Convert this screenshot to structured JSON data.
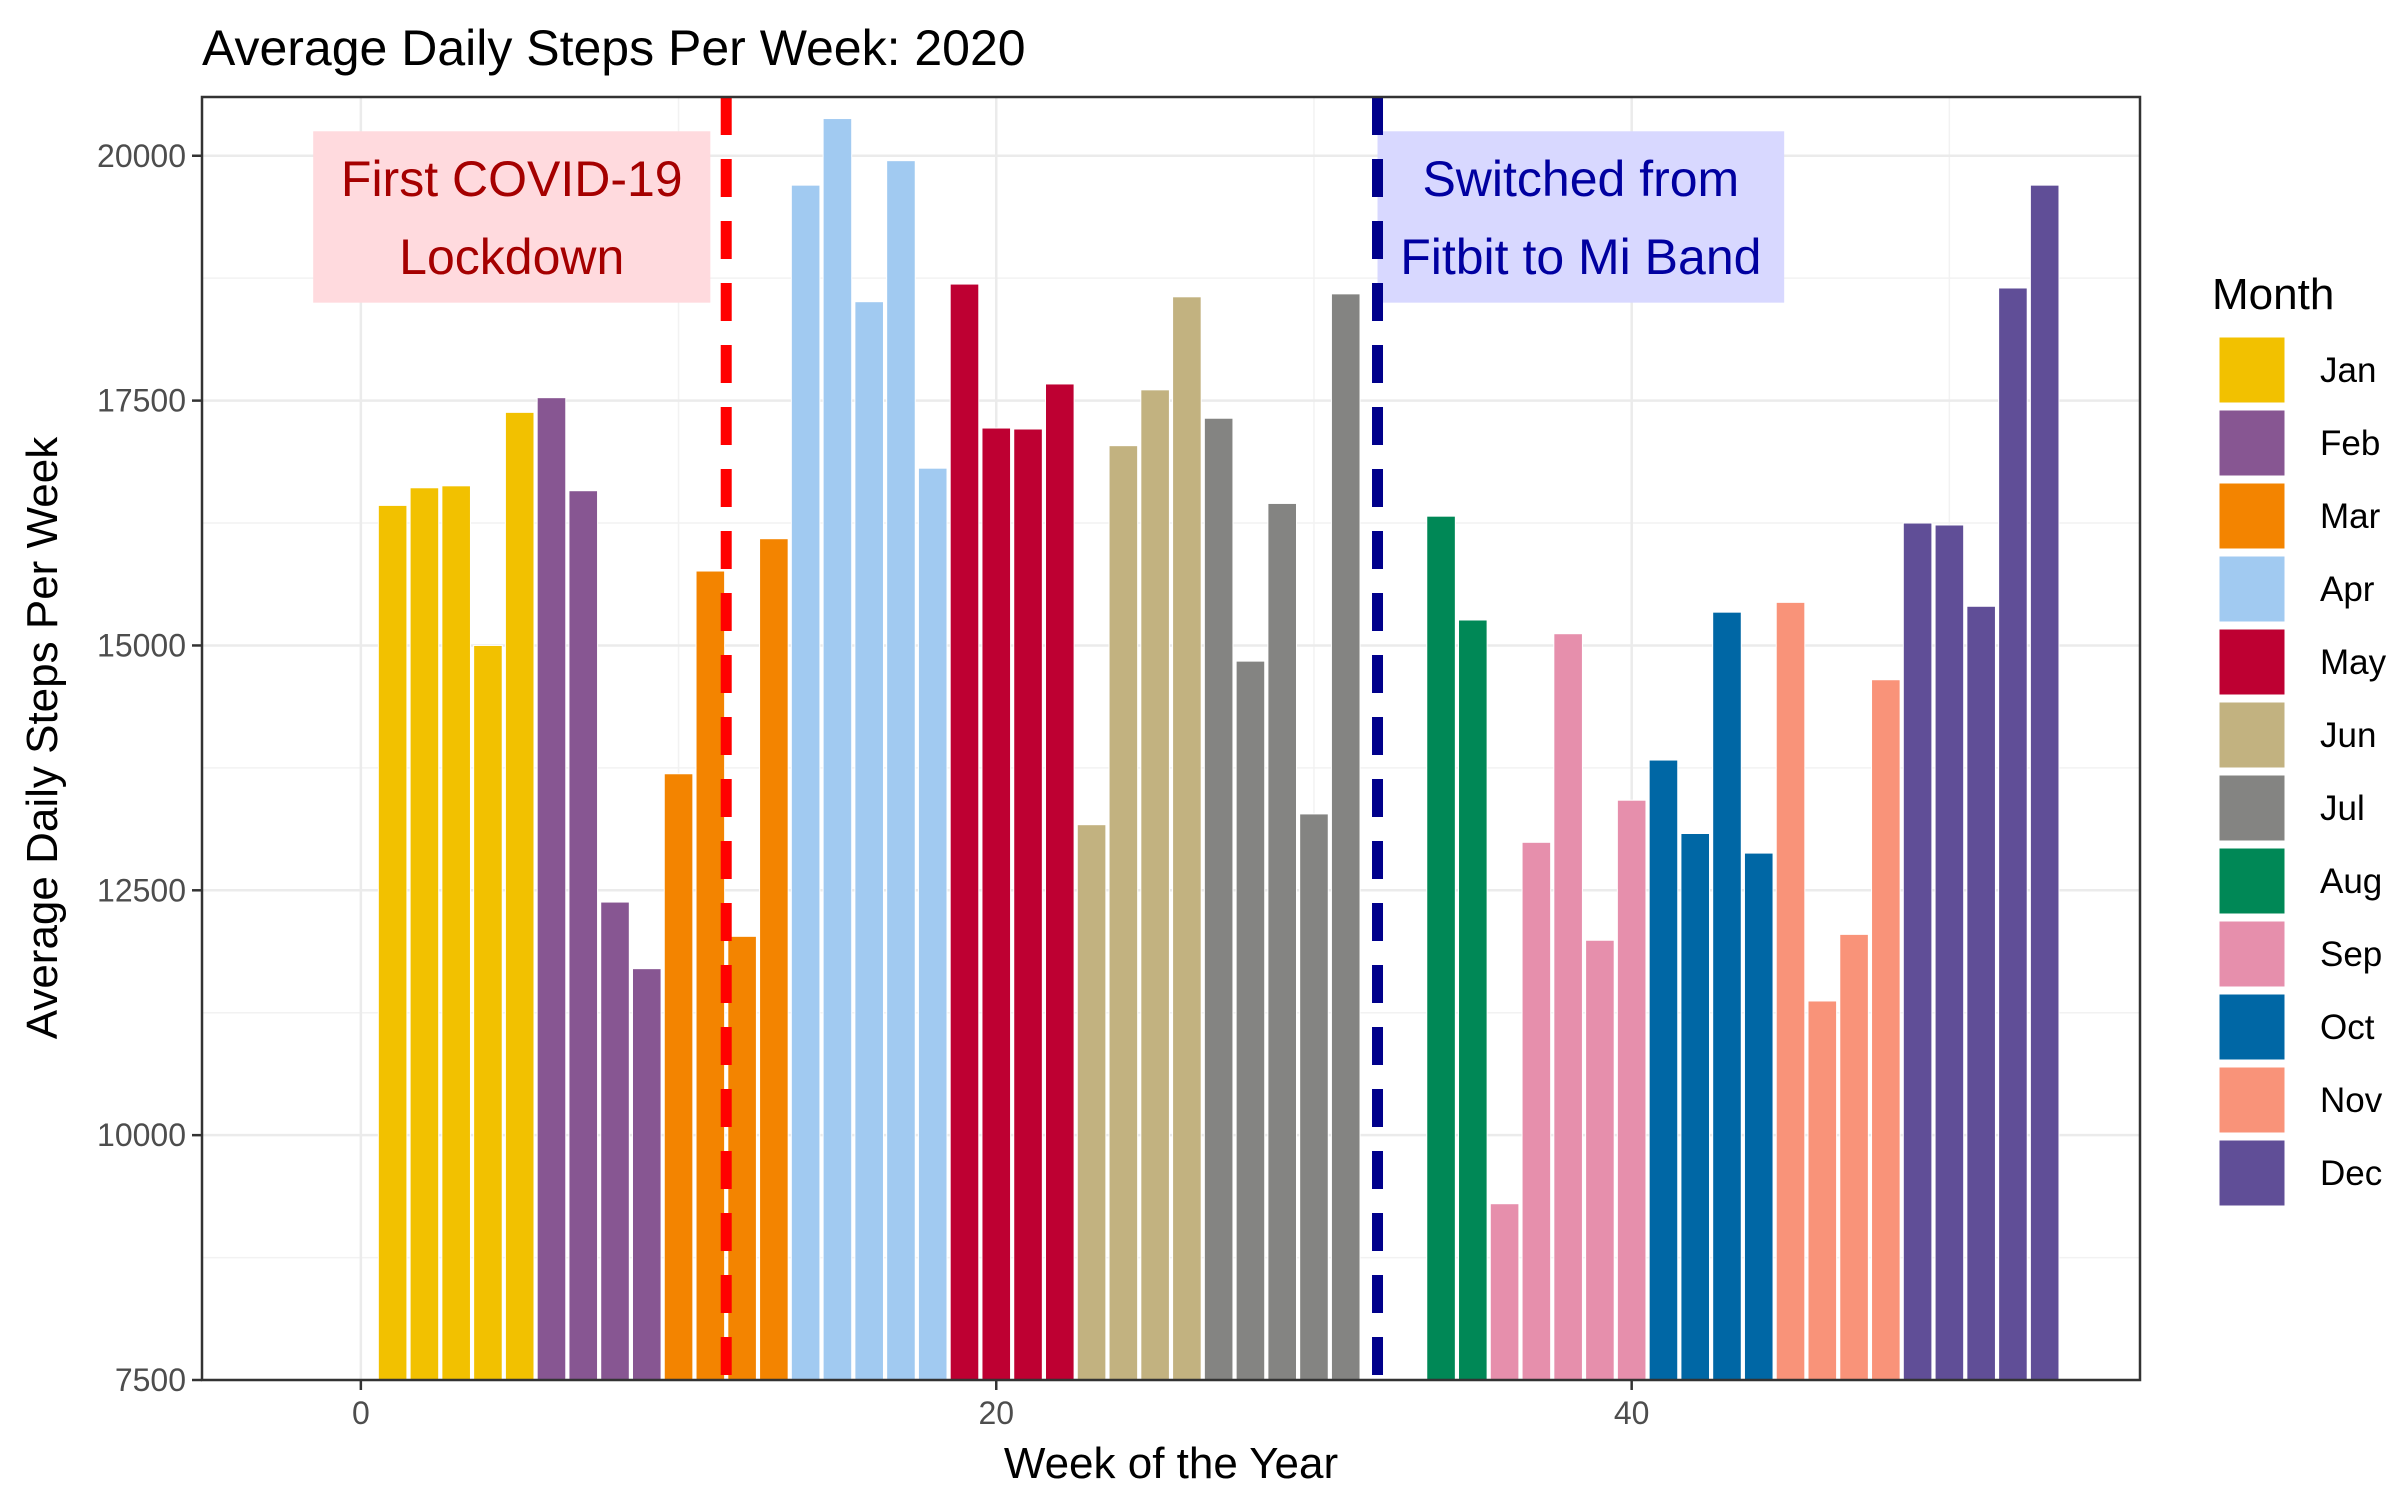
{
  "chart_data": {
    "type": "bar",
    "title": "Average Daily Steps Per Week: 2020",
    "xlabel": "Week of the Year",
    "ylabel": "Average Daily Steps Per Week",
    "xlim": [
      -5,
      56
    ],
    "ylim": [
      7500,
      20600
    ],
    "x_ticks": [
      0,
      20,
      40
    ],
    "y_ticks": [
      7500,
      10000,
      12500,
      15000,
      17500,
      20000
    ],
    "grid": true,
    "legend_title": "Month",
    "legend_position": "right",
    "months": [
      {
        "name": "Jan",
        "color": "#F2C100"
      },
      {
        "name": "Feb",
        "color": "#875692"
      },
      {
        "name": "Mar",
        "color": "#F38400"
      },
      {
        "name": "Apr",
        "color": "#A1CAF1"
      },
      {
        "name": "May",
        "color": "#BE0032"
      },
      {
        "name": "Jun",
        "color": "#C2B280"
      },
      {
        "name": "Jul",
        "color": "#848482"
      },
      {
        "name": "Aug",
        "color": "#008856"
      },
      {
        "name": "Sep",
        "color": "#E68FAC"
      },
      {
        "name": "Oct",
        "color": "#0067A5"
      },
      {
        "name": "Nov",
        "color": "#F99379"
      },
      {
        "name": "Dec",
        "color": "#604E97"
      }
    ],
    "bars": [
      {
        "week": 1,
        "month": "Jan",
        "value": 16430
      },
      {
        "week": 2,
        "month": "Jan",
        "value": 16610
      },
      {
        "week": 3,
        "month": "Jan",
        "value": 16630
      },
      {
        "week": 4,
        "month": "Jan",
        "value": 15000
      },
      {
        "week": 5,
        "month": "Jan",
        "value": 17380
      },
      {
        "week": 6,
        "month": "Feb",
        "value": 17530
      },
      {
        "week": 7,
        "month": "Feb",
        "value": 16580
      },
      {
        "week": 8,
        "month": "Feb",
        "value": 12380
      },
      {
        "week": 9,
        "month": "Feb",
        "value": 11700
      },
      {
        "week": 10,
        "month": "Mar",
        "value": 13690
      },
      {
        "week": 11,
        "month": "Mar",
        "value": 15760
      },
      {
        "week": 12,
        "month": "Mar",
        "value": 12030
      },
      {
        "week": 13,
        "month": "Mar",
        "value": 16090
      },
      {
        "week": 14,
        "month": "Apr",
        "value": 19700
      },
      {
        "week": 15,
        "month": "Apr",
        "value": 20380
      },
      {
        "week": 16,
        "month": "Apr",
        "value": 18510
      },
      {
        "week": 17,
        "month": "Apr",
        "value": 19950
      },
      {
        "week": 18,
        "month": "Apr",
        "value": 16810
      },
      {
        "week": 19,
        "month": "May",
        "value": 18690
      },
      {
        "week": 20,
        "month": "May",
        "value": 17220
      },
      {
        "week": 21,
        "month": "May",
        "value": 17210
      },
      {
        "week": 22,
        "month": "May",
        "value": 17670
      },
      {
        "week": 23,
        "month": "Jun",
        "value": 13170
      },
      {
        "week": 24,
        "month": "Jun",
        "value": 17040
      },
      {
        "week": 25,
        "month": "Jun",
        "value": 17610
      },
      {
        "week": 26,
        "month": "Jun",
        "value": 18560
      },
      {
        "week": 27,
        "month": "Jul",
        "value": 17320
      },
      {
        "week": 28,
        "month": "Jul",
        "value": 14840
      },
      {
        "week": 29,
        "month": "Jul",
        "value": 16450
      },
      {
        "week": 30,
        "month": "Jul",
        "value": 13280
      },
      {
        "week": 31,
        "month": "Jul",
        "value": 18590
      },
      {
        "week": 34,
        "month": "Aug",
        "value": 16320
      },
      {
        "week": 35,
        "month": "Aug",
        "value": 15260
      },
      {
        "week": 36,
        "month": "Sep",
        "value": 9300
      },
      {
        "week": 37,
        "month": "Sep",
        "value": 12990
      },
      {
        "week": 38,
        "month": "Sep",
        "value": 15120
      },
      {
        "week": 39,
        "month": "Sep",
        "value": 11990
      },
      {
        "week": 40,
        "month": "Sep",
        "value": 13420
      },
      {
        "week": 41,
        "month": "Oct",
        "value": 13830
      },
      {
        "week": 42,
        "month": "Oct",
        "value": 13080
      },
      {
        "week": 43,
        "month": "Oct",
        "value": 15340
      },
      {
        "week": 44,
        "month": "Oct",
        "value": 12880
      },
      {
        "week": 45,
        "month": "Nov",
        "value": 15440
      },
      {
        "week": 46,
        "month": "Nov",
        "value": 11370
      },
      {
        "week": 47,
        "month": "Nov",
        "value": 12050
      },
      {
        "week": 48,
        "month": "Nov",
        "value": 14650
      },
      {
        "week": 49,
        "month": "Dec",
        "value": 16250
      },
      {
        "week": 50,
        "month": "Dec",
        "value": 16230
      },
      {
        "week": 51,
        "month": "Dec",
        "value": 15400
      },
      {
        "week": 52,
        "month": "Dec",
        "value": 18650
      },
      {
        "week": 53,
        "month": "Dec",
        "value": 19700
      }
    ],
    "vlines": [
      {
        "x": 11.5,
        "color": "#FF0000"
      },
      {
        "x": 32.0,
        "color": "#00008B"
      }
    ],
    "annotations": [
      {
        "lines": [
          "First COVID-19",
          "Lockdown"
        ],
        "text_color": "#A50000",
        "fill": "#FFDADE",
        "x_min": -1.5,
        "x_max": 11.0,
        "y_min": 18500,
        "y_max": 20250
      },
      {
        "lines": [
          "Switched from",
          "Fitbit to Mi Band"
        ],
        "text_color": "#0000A0",
        "fill": "#D8D8FF",
        "x_min": 32.0,
        "x_max": 44.8,
        "y_min": 18500,
        "y_max": 20250
      }
    ]
  }
}
